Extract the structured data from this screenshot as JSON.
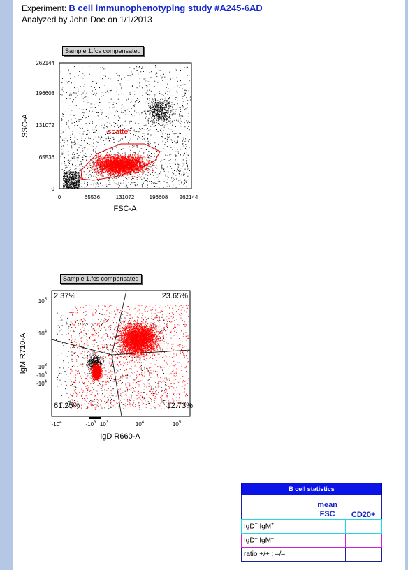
{
  "header": {
    "experiment_label": "Experiment:",
    "experiment_title": "B cell immunophenotyping study #A245-6AD",
    "analyzed": "Analyzed by John Doe on 1/1/2013"
  },
  "plot1": {
    "title": "Sample 1.fcs compensated",
    "xlabel": "FSC-A",
    "ylabel": "SSC-A",
    "xticks": [
      "0",
      "65536",
      "131072",
      "196608",
      "262144"
    ],
    "yticks": [
      "0",
      "65536",
      "131072",
      "196608",
      "262144"
    ],
    "gate_label": "scatter"
  },
  "plot2": {
    "title": "Sample 1.fcs compensated",
    "xlabel": "IgD R660-A",
    "ylabel": "IgM R710-A",
    "q_ul": "2.37%",
    "q_ur": "23.65%",
    "q_ll": "61.25%",
    "q_lr": "12.73%"
  },
  "stats": {
    "title": "B cell statistics",
    "col1_line1": "mean",
    "col1_line2": "FSC",
    "col2": "CD20+",
    "row1": "IgD",
    "row1b": "IgM",
    "row2": "IgD",
    "row2b": "IgM",
    "row3": "ratio +/+ : –/–",
    "sup_plus": "+",
    "sup_minus": "–"
  },
  "colors": {
    "dots_red": "#ff0000",
    "dots_black": "#000000",
    "title_blue": "#1428c8"
  }
}
